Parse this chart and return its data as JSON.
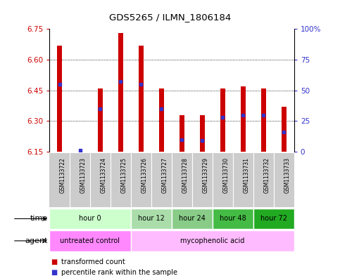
{
  "title": "GDS5265 / ILMN_1806184",
  "samples": [
    "GSM1133722",
    "GSM1133723",
    "GSM1133724",
    "GSM1133725",
    "GSM1133726",
    "GSM1133727",
    "GSM1133728",
    "GSM1133729",
    "GSM1133730",
    "GSM1133731",
    "GSM1133732",
    "GSM1133733"
  ],
  "bar_top": [
    6.67,
    6.152,
    6.46,
    6.73,
    6.67,
    6.46,
    6.33,
    6.33,
    6.46,
    6.47,
    6.46,
    6.37
  ],
  "bar_bottom": 6.15,
  "percentile": [
    55,
    1,
    35,
    57,
    55,
    35,
    10,
    9,
    28,
    30,
    30,
    16
  ],
  "ylim": [
    6.15,
    6.75
  ],
  "yticks_left": [
    6.15,
    6.3,
    6.45,
    6.6,
    6.75
  ],
  "yticks_right_vals": [
    0,
    25,
    50,
    75,
    100
  ],
  "bar_color": "#cc0000",
  "percentile_color": "#3333cc",
  "time_groups": [
    {
      "label": "hour 0",
      "start": 0,
      "end": 4,
      "color": "#ccffcc"
    },
    {
      "label": "hour 12",
      "start": 4,
      "end": 6,
      "color": "#aaddaa"
    },
    {
      "label": "hour 24",
      "start": 6,
      "end": 8,
      "color": "#88cc88"
    },
    {
      "label": "hour 48",
      "start": 8,
      "end": 10,
      "color": "#44bb44"
    },
    {
      "label": "hour 72",
      "start": 10,
      "end": 12,
      "color": "#22aa22"
    }
  ],
  "agent_groups": [
    {
      "label": "untreated control",
      "start": 0,
      "end": 4,
      "color": "#ff88ff"
    },
    {
      "label": "mycophenolic acid",
      "start": 4,
      "end": 12,
      "color": "#ffbbff"
    }
  ],
  "sample_bg_color": "#cccccc",
  "legend_items": [
    {
      "label": "transformed count",
      "color": "#cc0000"
    },
    {
      "label": "percentile rank within the sample",
      "color": "#3333cc"
    }
  ],
  "left_color": "#cc0000",
  "right_color": "#3333cc",
  "fig_width": 4.83,
  "fig_height": 3.93,
  "dpi": 100
}
